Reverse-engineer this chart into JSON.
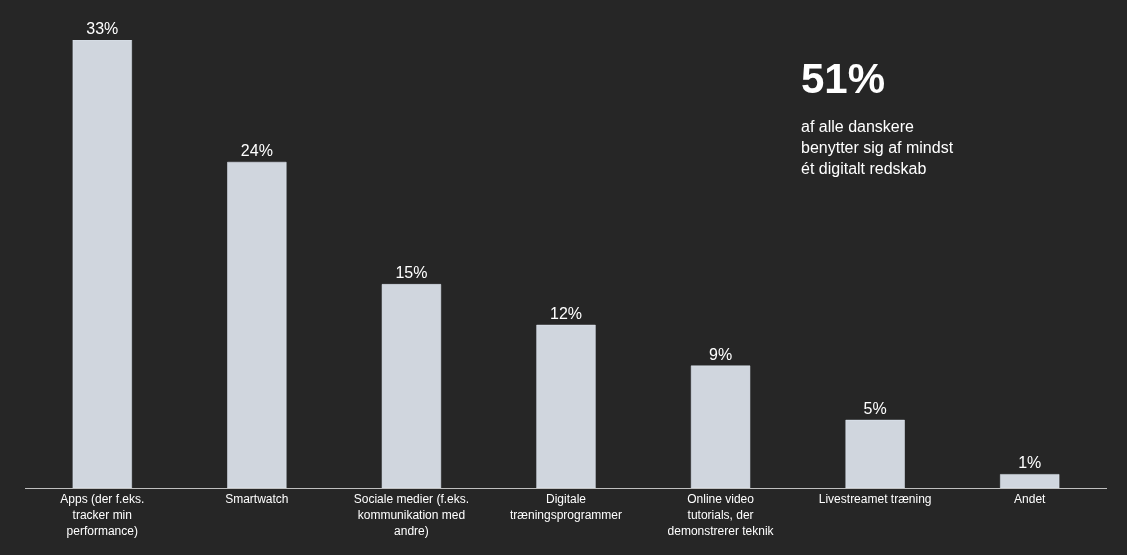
{
  "chart_data": {
    "type": "bar",
    "categories": [
      "Apps (der f.eks. tracker min performance)",
      "Smartwatch",
      "Sociale medier (f.eks. kommunikation med andre)",
      "Digitale træningsprogrammer",
      "Online video tutorials, der demonstrerer teknik",
      "Livestreamet træning",
      "Andet"
    ],
    "values": [
      33,
      24,
      15,
      12,
      9,
      5,
      1
    ],
    "value_labels": [
      "33%",
      "24%",
      "15%",
      "12%",
      "9%",
      "5%",
      "1%"
    ],
    "color": "#d0d6de",
    "annotations": [
      "51%",
      "af alle danskere benytter sig af mindst ét digitalt redskab"
    ],
    "grid": false,
    "legend": false
  }
}
